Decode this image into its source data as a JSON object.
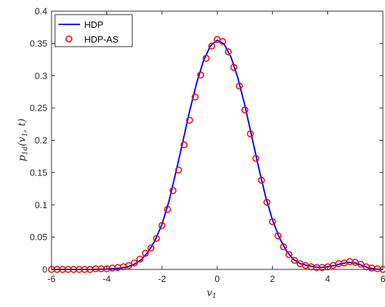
{
  "chart_data": {
    "type": "line",
    "xlabel": "v",
    "xlabel_sub": "1",
    "ylabel": "p",
    "ylabel_sub": "1d",
    "ylabel_tail": "(v",
    "ylabel_tail_sub": "1",
    "ylabel_end": ", t)",
    "xlim": [
      -6,
      6
    ],
    "ylim": [
      0,
      0.4
    ],
    "xticks": [
      -6,
      -4,
      -2,
      0,
      2,
      4,
      6
    ],
    "yticks": [
      0,
      0.05,
      0.1,
      0.15,
      0.2,
      0.25,
      0.3,
      0.35,
      0.4
    ],
    "xtick_labels": [
      "-6",
      "-4",
      "-2",
      "0",
      "2",
      "4",
      "6"
    ],
    "ytick_labels": [
      "0",
      "0.05",
      "0.1",
      "0.15",
      "0.2",
      "0.25",
      "0.3",
      "0.35",
      "0.4"
    ],
    "grid": false,
    "legend_position": "top-left",
    "series": [
      {
        "name": "HDP",
        "style": "line",
        "color": "#0000ff",
        "x": [
          -6,
          -5.5,
          -5,
          -4.5,
          -4,
          -3.5,
          -3.25,
          -3,
          -2.75,
          -2.5,
          -2.25,
          -2,
          -1.75,
          -1.5,
          -1.25,
          -1,
          -0.75,
          -0.5,
          -0.25,
          0,
          0.25,
          0.5,
          0.75,
          1,
          1.25,
          1.5,
          1.75,
          2,
          2.25,
          2.5,
          2.75,
          3,
          3.25,
          3.5,
          3.75,
          4,
          4.25,
          4.5,
          4.75,
          5,
          5.25,
          5.5,
          5.75,
          6
        ],
        "y": [
          0,
          0,
          0,
          0,
          0.0005,
          0.002,
          0.004,
          0.008,
          0.015,
          0.027,
          0.045,
          0.07,
          0.105,
          0.15,
          0.197,
          0.245,
          0.288,
          0.323,
          0.346,
          0.355,
          0.349,
          0.329,
          0.296,
          0.254,
          0.206,
          0.158,
          0.113,
          0.077,
          0.049,
          0.029,
          0.016,
          0.009,
          0.006,
          0.004,
          0.003,
          0.004,
          0.006,
          0.009,
          0.011,
          0.01,
          0.006,
          0.002,
          0.0005,
          0
        ]
      },
      {
        "name": "HDP-AS",
        "style": "markers",
        "marker": "circle",
        "color": "#ff0000",
        "x": [
          -6,
          -5.8,
          -5.6,
          -5.4,
          -5.2,
          -5,
          -4.8,
          -4.6,
          -4.4,
          -4.2,
          -4,
          -3.8,
          -3.6,
          -3.4,
          -3.2,
          -3,
          -2.8,
          -2.6,
          -2.4,
          -2.2,
          -2,
          -1.8,
          -1.6,
          -1.4,
          -1.2,
          -1,
          -0.8,
          -0.6,
          -0.4,
          -0.2,
          0,
          0.2,
          0.4,
          0.6,
          0.8,
          1,
          1.2,
          1.4,
          1.6,
          1.8,
          2,
          2.2,
          2.4,
          2.6,
          2.8,
          3,
          3.2,
          3.4,
          3.6,
          3.8,
          4,
          4.2,
          4.4,
          4.6,
          4.8,
          5,
          5.2,
          5.4,
          5.6,
          5.8,
          6
        ],
        "y": [
          0,
          0,
          0,
          0,
          0,
          0,
          0,
          0,
          0.001,
          0.001,
          0.001,
          0.002,
          0.003,
          0.004,
          0.006,
          0.01,
          0.016,
          0.025,
          0.033,
          0.048,
          0.068,
          0.093,
          0.122,
          0.154,
          0.193,
          0.231,
          0.267,
          0.301,
          0.327,
          0.346,
          0.356,
          0.353,
          0.337,
          0.313,
          0.284,
          0.247,
          0.21,
          0.172,
          0.138,
          0.104,
          0.074,
          0.052,
          0.035,
          0.023,
          0.014,
          0.009,
          0.006,
          0.004,
          0.003,
          0.003,
          0.004,
          0.006,
          0.009,
          0.01,
          0.012,
          0.011,
          0.008,
          0.004,
          0.002,
          0.001,
          0
        ]
      }
    ]
  }
}
